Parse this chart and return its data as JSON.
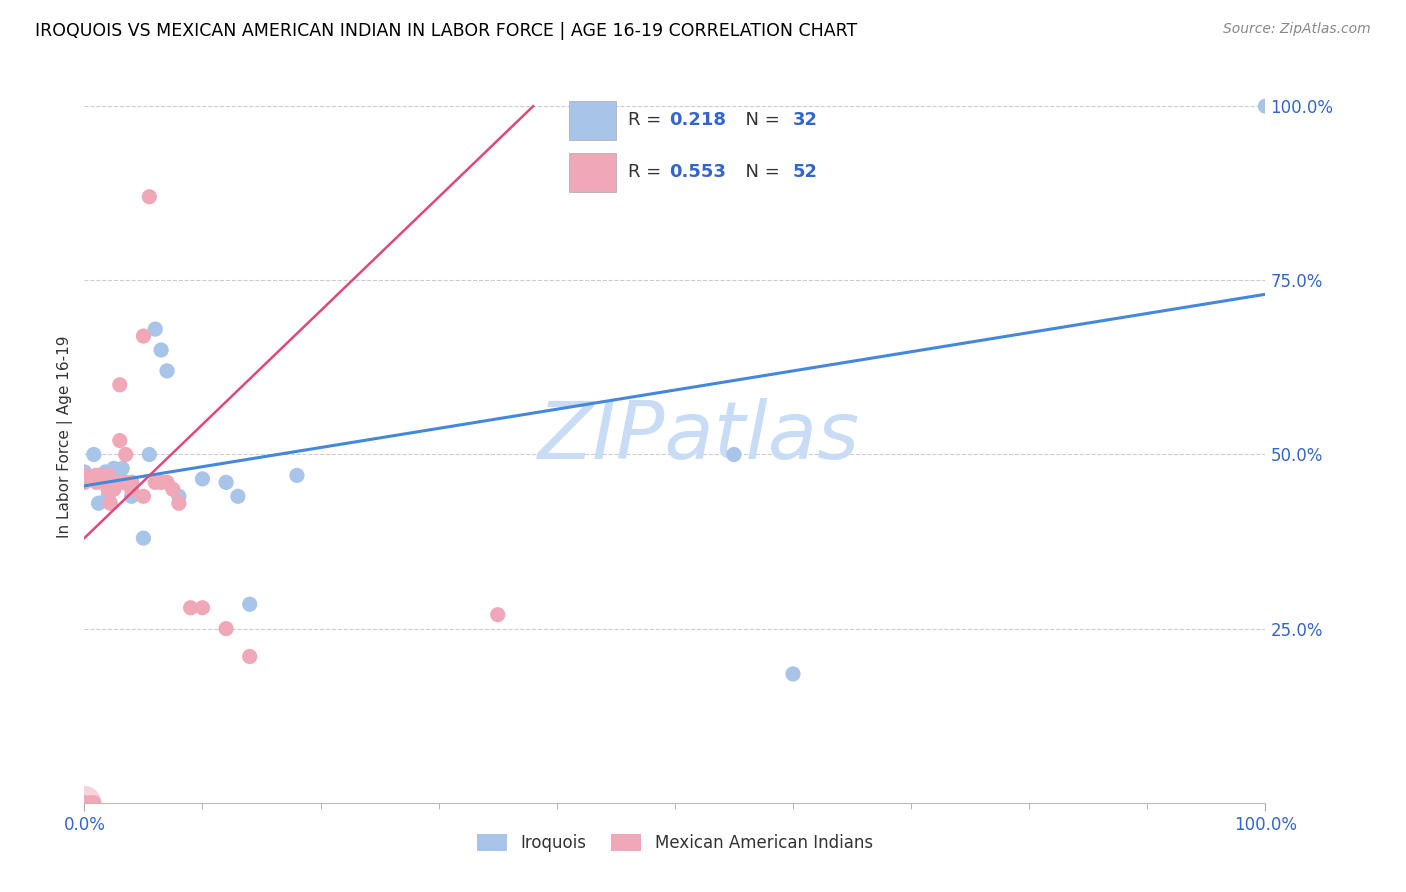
{
  "title": "IROQUOIS VS MEXICAN AMERICAN INDIAN IN LABOR FORCE | AGE 16-19 CORRELATION CHART",
  "source": "Source: ZipAtlas.com",
  "ylabel": "In Labor Force | Age 16-19",
  "xlim": [
    0.0,
    1.0
  ],
  "ylim": [
    0.0,
    1.0
  ],
  "blue_color": "#a8c4e8",
  "pink_color": "#f0a8b8",
  "line_blue": "#4488dd",
  "line_pink": "#e04878",
  "text_blue": "#3366cc",
  "watermark_color": "#c8ddf5",
  "iroquois_x": [
    0.0,
    0.008,
    0.012,
    0.018,
    0.02,
    0.025,
    0.028,
    0.032,
    0.035,
    0.04,
    0.04,
    0.05,
    0.055,
    0.06,
    0.065,
    0.07,
    0.08,
    0.1,
    0.12,
    0.13,
    0.14,
    0.18,
    0.55,
    0.6,
    1.0
  ],
  "iroquois_y": [
    0.475,
    0.5,
    0.43,
    0.475,
    0.44,
    0.48,
    0.478,
    0.48,
    0.46,
    0.46,
    0.44,
    0.38,
    0.5,
    0.68,
    0.65,
    0.62,
    0.44,
    0.465,
    0.46,
    0.44,
    0.285,
    0.47,
    0.5,
    0.185,
    1.0
  ],
  "mexican_x": [
    0.0,
    0.0,
    0.0,
    0.0,
    0.005,
    0.008,
    0.01,
    0.01,
    0.012,
    0.015,
    0.018,
    0.02,
    0.02,
    0.02,
    0.022,
    0.025,
    0.028,
    0.03,
    0.03,
    0.03,
    0.032,
    0.035,
    0.04,
    0.04,
    0.05,
    0.05,
    0.055,
    0.06,
    0.065,
    0.07,
    0.075,
    0.08,
    0.09,
    0.1,
    0.12,
    0.14,
    0.35
  ],
  "mexican_y": [
    0.0,
    0.0,
    0.47,
    0.46,
    0.0,
    0.0,
    0.47,
    0.46,
    0.47,
    0.46,
    0.46,
    0.47,
    0.46,
    0.45,
    0.43,
    0.45,
    0.46,
    0.46,
    0.52,
    0.6,
    0.46,
    0.5,
    0.46,
    0.45,
    0.44,
    0.67,
    0.87,
    0.46,
    0.46,
    0.46,
    0.45,
    0.43,
    0.28,
    0.28,
    0.25,
    0.21,
    0.27
  ],
  "iroquois_line": [
    [
      0.0,
      1.0
    ],
    [
      0.455,
      0.73
    ]
  ],
  "mexican_line": [
    [
      0.0,
      0.38
    ],
    [
      0.38,
      1.0
    ]
  ],
  "yticks": [
    0.25,
    0.5,
    0.75,
    1.0
  ],
  "ytick_labels": [
    "25.0%",
    "50.0%",
    "75.0%",
    "100.0%"
  ],
  "xtick_labels": [
    "0.0%",
    "100.0%"
  ],
  "minor_xticks": [
    0.1,
    0.2,
    0.3,
    0.4,
    0.5,
    0.6,
    0.7,
    0.8,
    0.9
  ]
}
